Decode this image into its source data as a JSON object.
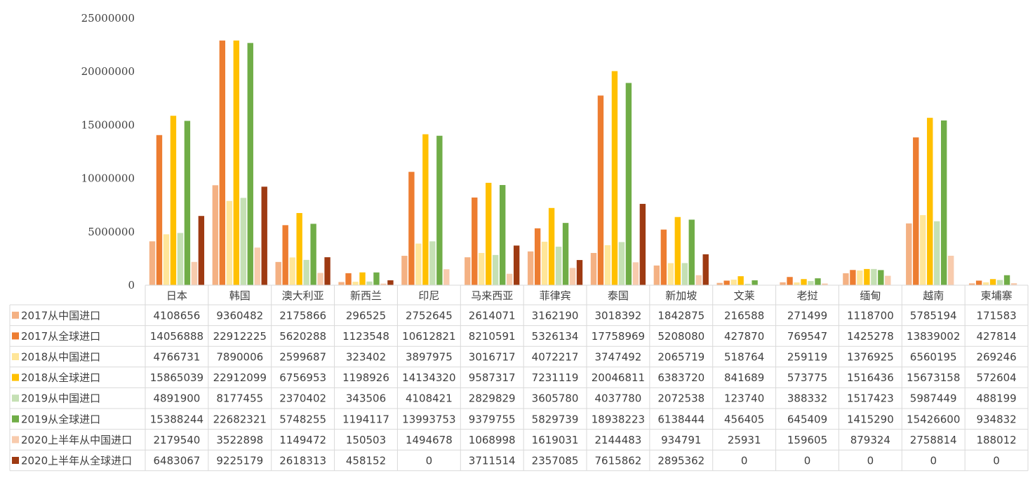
{
  "chart_data": {
    "type": "bar",
    "title": "",
    "xlabel": "",
    "ylabel": "",
    "ylim": [
      0,
      25000000
    ],
    "yticks": [
      "0",
      "5000000",
      "10000000",
      "15000000",
      "20000000",
      "25000000"
    ],
    "ytick_values": [
      0,
      5000000,
      10000000,
      15000000,
      20000000,
      25000000
    ],
    "grid": false,
    "legend": "data-table-left",
    "categories": [
      "日本",
      "韩国",
      "澳大利亚",
      "新西兰",
      "印尼",
      "马来西亚",
      "菲律宾",
      "泰国",
      "新加坡",
      "文莱",
      "老挝",
      "缅甸",
      "越南",
      "柬埔寨"
    ],
    "series": [
      {
        "name": "2017从中国进口",
        "color": "#F4B183",
        "values": [
          4108656,
          9360482,
          2175866,
          296525,
          2752645,
          2614071,
          3162190,
          3018392,
          1842875,
          216588,
          271499,
          1118700,
          5785194,
          171583
        ]
      },
      {
        "name": "2017从全球进口",
        "color": "#ED7D31",
        "values": [
          14056888,
          22912225,
          5620288,
          1123548,
          10612821,
          8210591,
          5326134,
          17758969,
          5208080,
          427870,
          769547,
          1425278,
          13839002,
          427814
        ]
      },
      {
        "name": "2018从中国进口",
        "color": "#FFE699",
        "values": [
          4766731,
          7890006,
          2599687,
          323402,
          3897975,
          3016717,
          4072217,
          3747492,
          2065719,
          518764,
          259119,
          1376925,
          6560195,
          269246
        ]
      },
      {
        "name": "2018从全球进口",
        "color": "#FFC000",
        "values": [
          15865039,
          22912099,
          6756953,
          1198926,
          14134320,
          9587317,
          7231119,
          20046811,
          6383720,
          841689,
          573775,
          1516436,
          15673158,
          572604
        ]
      },
      {
        "name": "2019从中国进口",
        "color": "#C5E0B4",
        "values": [
          4891900,
          8177455,
          2370402,
          343506,
          4108421,
          2829829,
          3605780,
          4037780,
          2072538,
          123740,
          388332,
          1517423,
          5987449,
          488199
        ]
      },
      {
        "name": "2019从全球进口",
        "color": "#70AD47",
        "values": [
          15388244,
          22682321,
          5748255,
          1194117,
          13993753,
          9379755,
          5829739,
          18938223,
          6138444,
          456405,
          645409,
          1415290,
          15426600,
          934832
        ]
      },
      {
        "name": "2020上半年从中国进口",
        "color": "#F8CBAD",
        "values": [
          2179540,
          3522898,
          1149472,
          150503,
          1494678,
          1068998,
          1619031,
          2144483,
          934791,
          25931,
          159605,
          879324,
          2758814,
          188012
        ]
      },
      {
        "name": "2020上半年从全球进口",
        "color": "#9E3A12",
        "values": [
          6483067,
          9225179,
          2618313,
          458152,
          0,
          3711514,
          2357085,
          7615862,
          2895362,
          0,
          0,
          0,
          0,
          0
        ]
      }
    ]
  }
}
